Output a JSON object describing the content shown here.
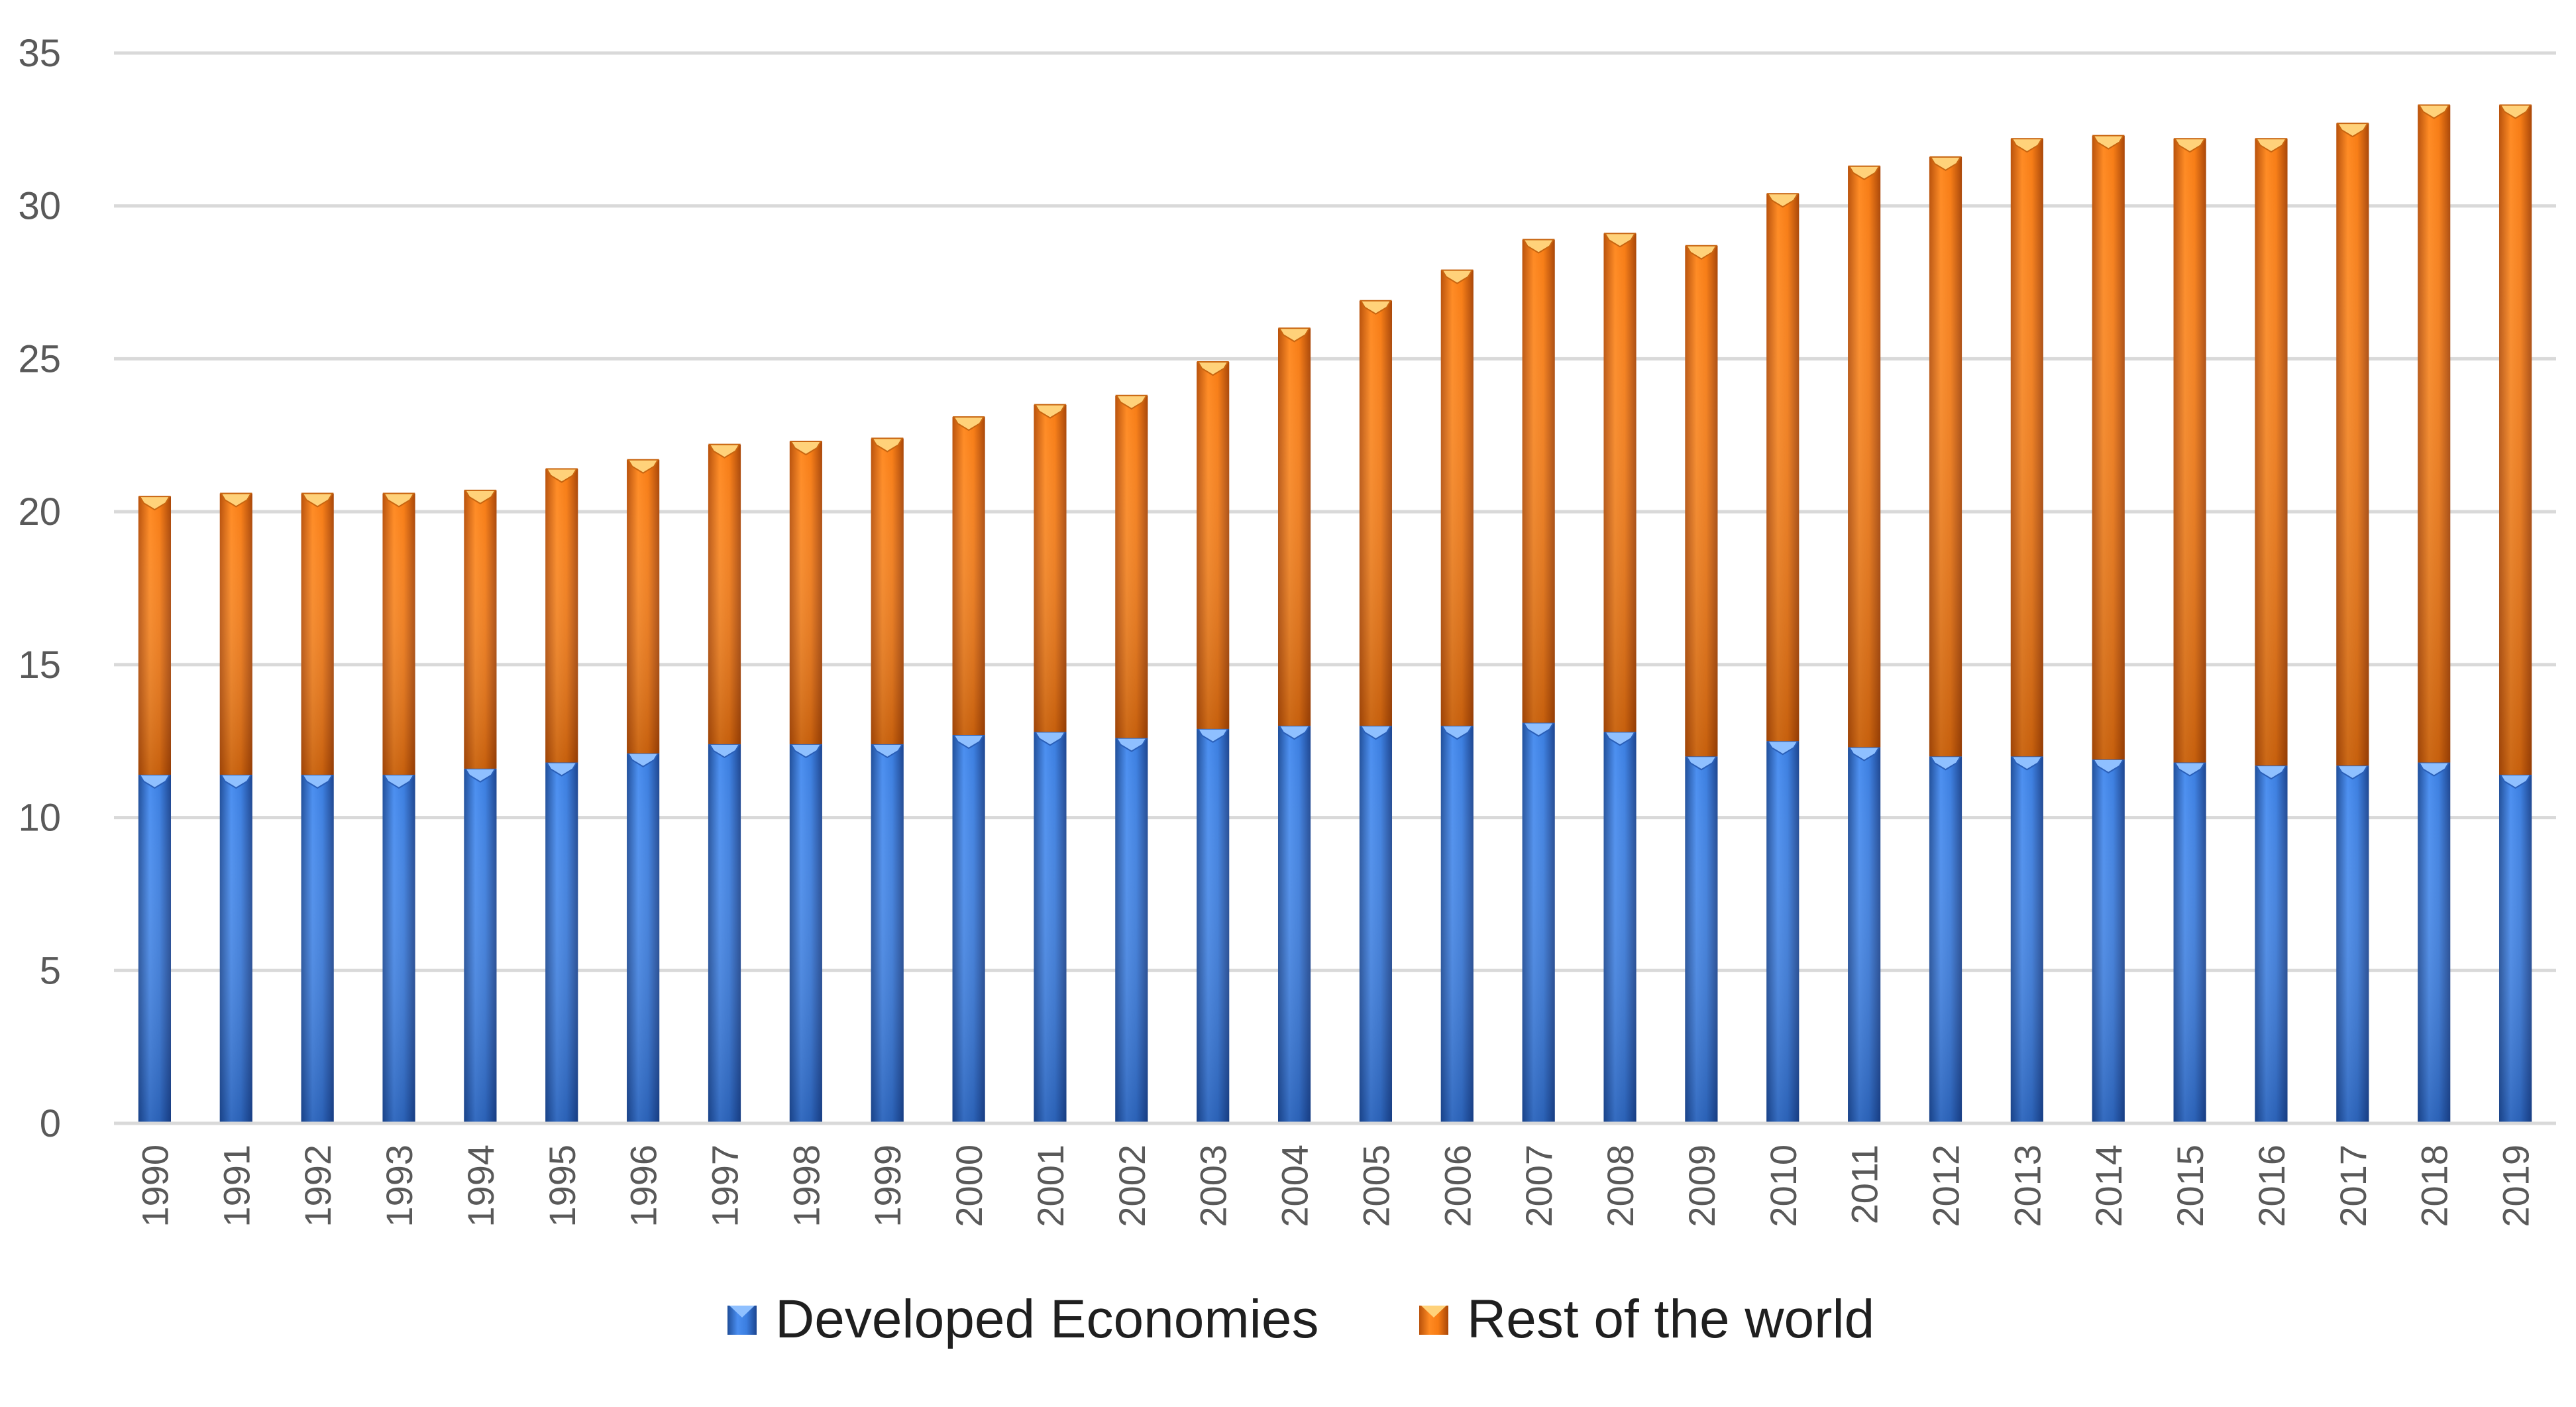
{
  "chart_data": {
    "type": "bar",
    "stacked": true,
    "title": "",
    "xlabel": "",
    "ylabel": "",
    "ylim": [
      0,
      35
    ],
    "yticks": [
      "0",
      "5",
      "10",
      "15",
      "20",
      "25",
      "30",
      "35"
    ],
    "grid": true,
    "legend_position": "bottom-center",
    "categories": [
      "1990",
      "1991",
      "1992",
      "1993",
      "1994",
      "1995",
      "1996",
      "1997",
      "1998",
      "1999",
      "2000",
      "2001",
      "2002",
      "2003",
      "2004",
      "2005",
      "2006",
      "2007",
      "2008",
      "2009",
      "2010",
      "2011",
      "2012",
      "2013",
      "2014",
      "2015",
      "2016",
      "2017",
      "2018",
      "2019"
    ],
    "series": [
      {
        "name": "Developed Economies",
        "color": "#3a78d8",
        "values": [
          11.4,
          11.4,
          11.4,
          11.4,
          11.6,
          11.8,
          12.1,
          12.4,
          12.4,
          12.4,
          12.7,
          12.8,
          12.6,
          12.9,
          13.0,
          13.0,
          13.0,
          13.1,
          12.8,
          12.0,
          12.5,
          12.3,
          12.0,
          12.0,
          11.9,
          11.8,
          11.7,
          11.7,
          11.8,
          11.4
        ]
      },
      {
        "name": "Rest of the world",
        "color": "#f58220",
        "values": [
          9.1,
          9.2,
          9.2,
          9.2,
          9.1,
          9.6,
          9.6,
          9.8,
          9.9,
          10.0,
          10.4,
          10.7,
          11.2,
          12.0,
          13.0,
          13.9,
          14.9,
          15.8,
          16.3,
          16.7,
          17.9,
          19.0,
          19.6,
          20.2,
          20.4,
          20.4,
          20.5,
          21.0,
          21.5,
          21.9
        ]
      }
    ]
  },
  "legend": {
    "items": [
      {
        "label": "Developed Economies",
        "color": "#3a78d8"
      },
      {
        "label": "Rest of the world",
        "color": "#f58220"
      }
    ]
  }
}
